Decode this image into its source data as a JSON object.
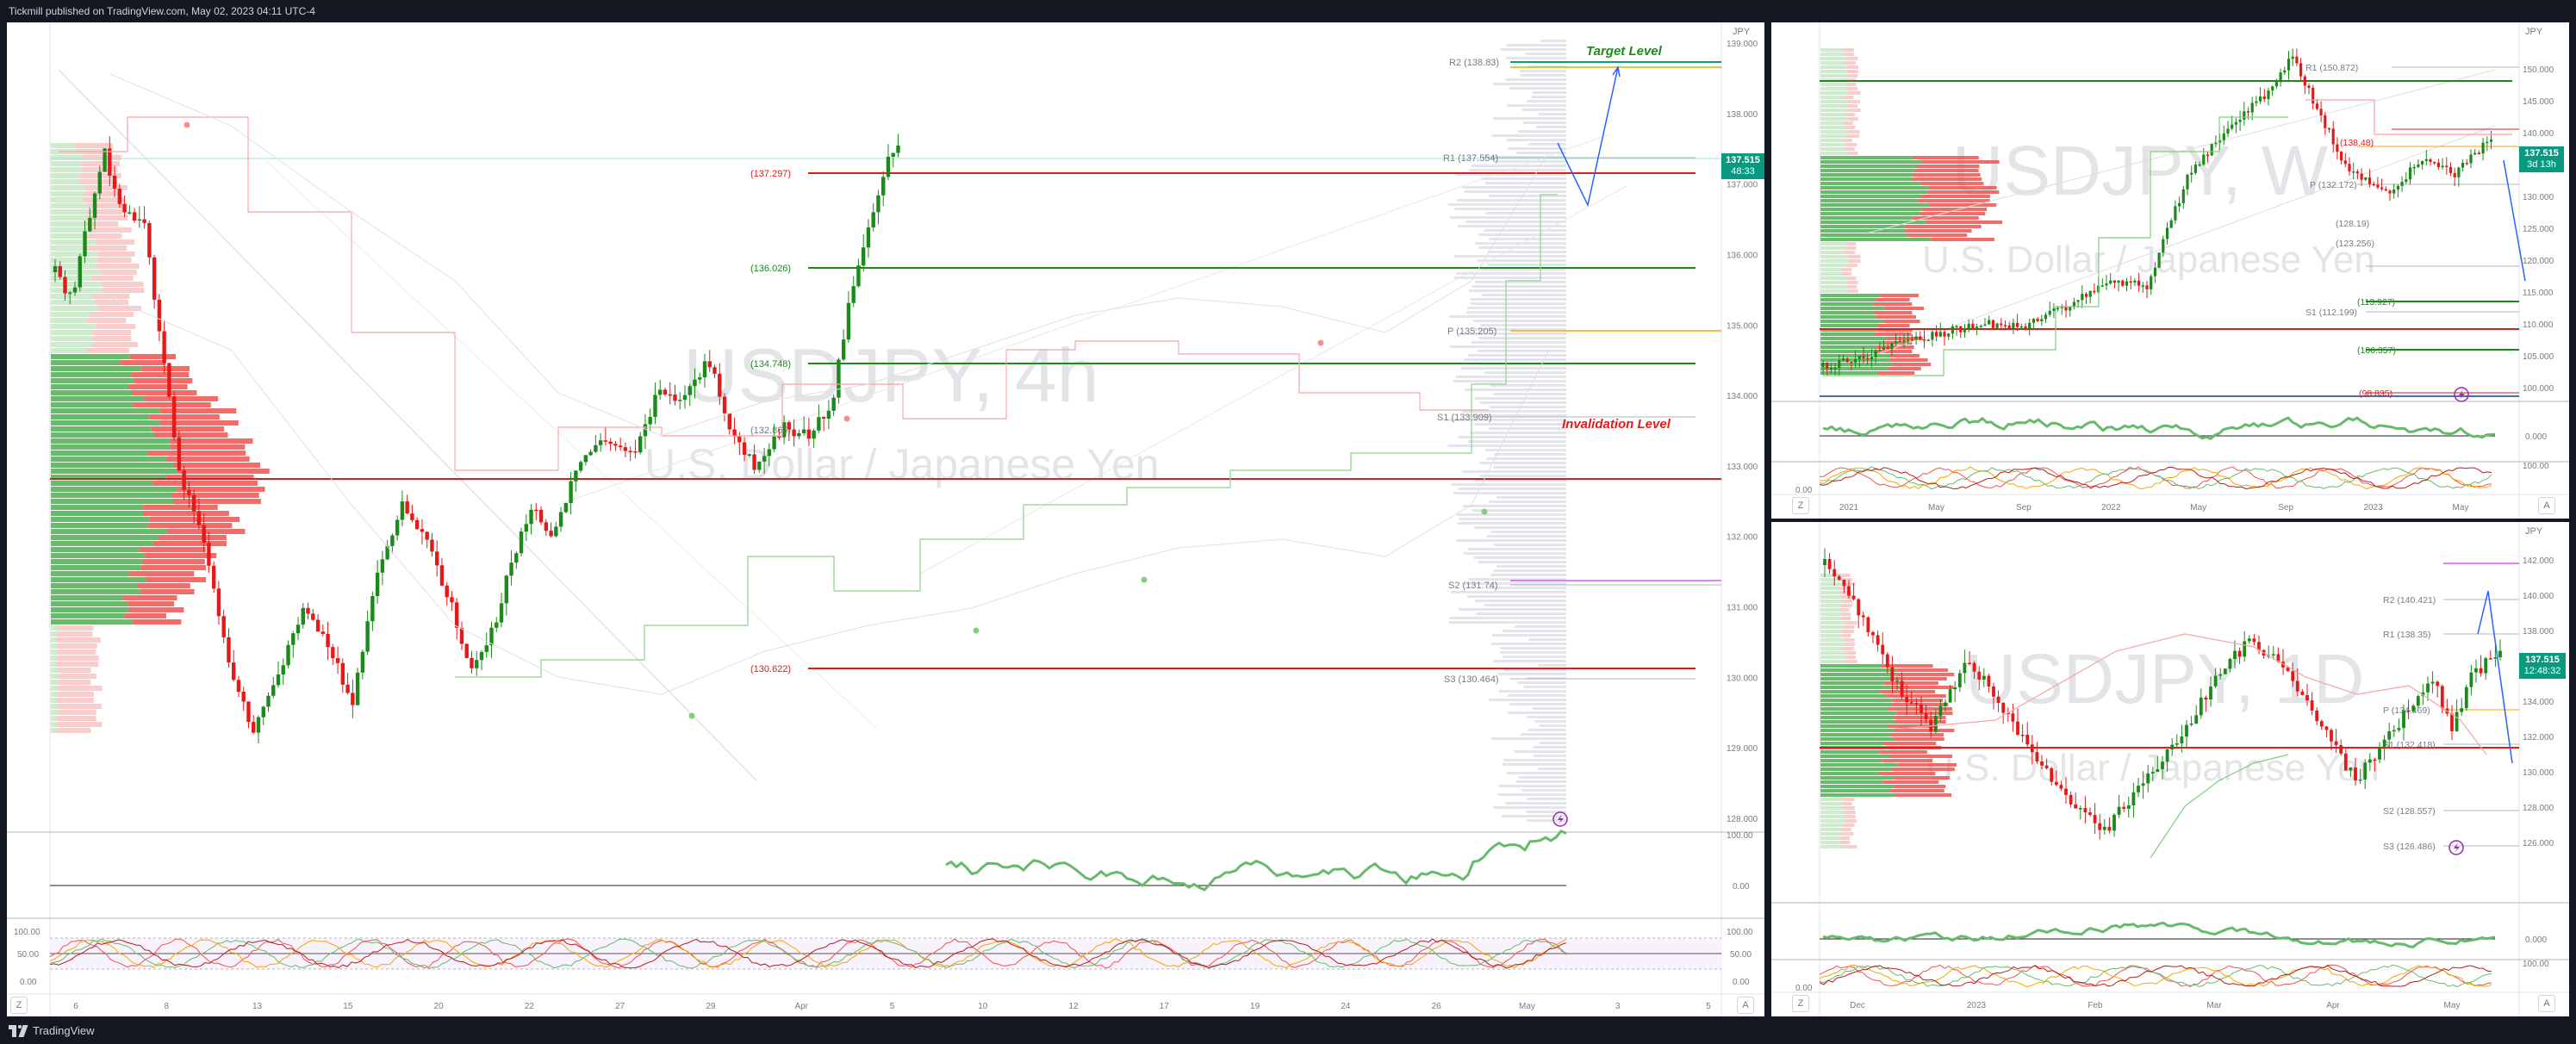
{
  "header": {
    "text": "Tickmill published on TradingView.com, May 02, 2023 04:11 UTC-4"
  },
  "footer": {
    "brand": "TradingView"
  },
  "colors": {
    "green": "#089981",
    "red": "#f23645",
    "chart_green": "#1b8a1b",
    "chart_red": "#e61919",
    "bg": "#131722"
  },
  "main": {
    "watermark_symbol": "USDJPY, 4h",
    "watermark_desc": "U.S. Dollar / Japanese Yen",
    "currency": "JPY",
    "price_badge": "137.515",
    "price_badge_sub": "48:33",
    "levels": {
      "r2": "R2 (138.83)",
      "r1": "R1 (137.554)",
      "l1": "(137.297)",
      "l2": "(136.026)",
      "p": "P (135.205)",
      "l3": "(134.748)",
      "s1": "S1 (133.909)",
      "l4": "(132.865)",
      "s2": "S2 (131.74)",
      "l5": "(130.622)",
      "s3": "S3 (130.464)"
    },
    "target_label": "Target Level",
    "invalidation_label": "Invalidation Level",
    "price_axis": [
      "139.000",
      "138.000",
      "137.000",
      "136.000",
      "135.000",
      "134.000",
      "133.000",
      "132.000",
      "131.000",
      "130.000",
      "129.000",
      "128.000"
    ],
    "time_axis": [
      "6",
      "8",
      "13",
      "15",
      "20",
      "22",
      "27",
      "29",
      "Apr",
      "5",
      "10",
      "12",
      "17",
      "19",
      "24",
      "26",
      "May",
      "3",
      "5"
    ],
    "osc1_axis": [
      "100.00",
      "0.00"
    ],
    "osc2_axis": [
      "100.00",
      "50.00",
      "0.00"
    ],
    "button_z": "Z",
    "button_a": "A"
  },
  "weekly": {
    "watermark_symbol": "USDJPY, W",
    "watermark_desc": "U.S. Dollar / Japanese Yen",
    "currency": "JPY",
    "price_badge": "137.515",
    "price_badge_sub": "3d 13h",
    "levels": {
      "r1": "R1 (150.872)",
      "l1": "(138.48)",
      "p": "P (132.172)",
      "l2": "(128.19)",
      "l3": "(123.256)",
      "l4": "(113.927)",
      "s1": "S1 (112.199)",
      "l5": "(106.357)",
      "l6": "(98.835)"
    },
    "price_axis": [
      "150.000",
      "145.000",
      "140.000",
      "135.000",
      "130.000",
      "125.000",
      "120.000",
      "115.000",
      "110.000",
      "105.000",
      "100.000"
    ],
    "time_axis": [
      "2021",
      "May",
      "Sep",
      "2022",
      "May",
      "Sep",
      "2023",
      "May"
    ],
    "osc1_axis": [
      "0.000"
    ],
    "osc2_axis": [
      "100.00",
      "0.00"
    ],
    "button_z": "Z",
    "button_a": "A"
  },
  "daily": {
    "watermark_symbol": "USDJPY, 1D",
    "watermark_desc": "U.S. Dollar / Japanese Yen",
    "currency": "JPY",
    "price_badge": "137.515",
    "price_badge_sub": "12:48:32",
    "levels": {
      "r2": "R2 (140.421)",
      "r1": "R1 (138.35)",
      "p": "P (134.469)",
      "s1": "S1 (132.418)",
      "s2": "S2 (128.557)",
      "s3": "S3 (126.486)"
    },
    "price_axis": [
      "142.000",
      "140.000",
      "138.000",
      "136.000",
      "134.000",
      "132.000",
      "130.000",
      "128.000",
      "126.000"
    ],
    "time_axis": [
      "Dec",
      "2023",
      "Feb",
      "Mar",
      "Apr",
      "May"
    ],
    "osc1_axis": [
      "0.000"
    ],
    "osc2_axis": [
      "100.00",
      "0.00"
    ],
    "button_z": "Z",
    "button_a": "A"
  }
}
